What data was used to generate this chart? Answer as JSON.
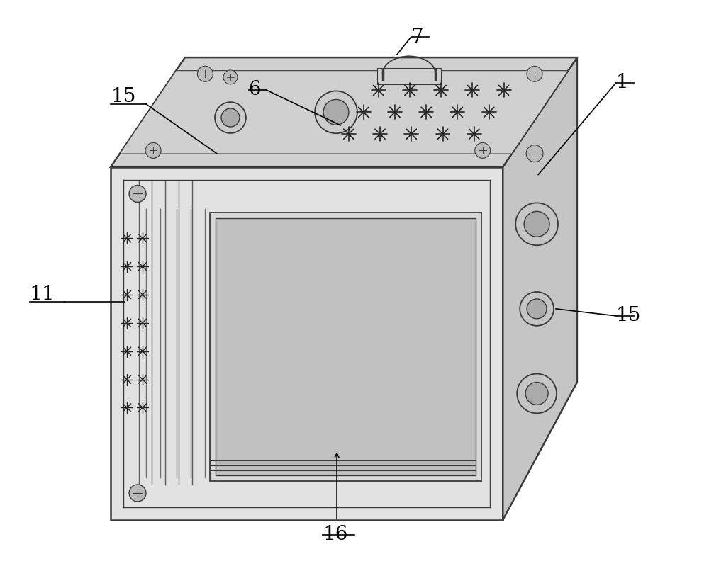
{
  "background_color": "#ffffff",
  "line_color": "#3a3a3a",
  "label_color": "#000000",
  "face_front_color": "#e2e2e2",
  "face_top_color": "#d0d0d0",
  "face_right_color": "#c5c5c5",
  "face_left_color": "#c8c8c8",
  "screen_color": "#d8d8d8",
  "screen_inner_color": "#c0c0c0",
  "button_color": "#cccccc",
  "button_inner_color": "#aaaaaa",
  "screw_color": "#bbbbbb",
  "led_color": "#222222",
  "groove_color": "#888888"
}
